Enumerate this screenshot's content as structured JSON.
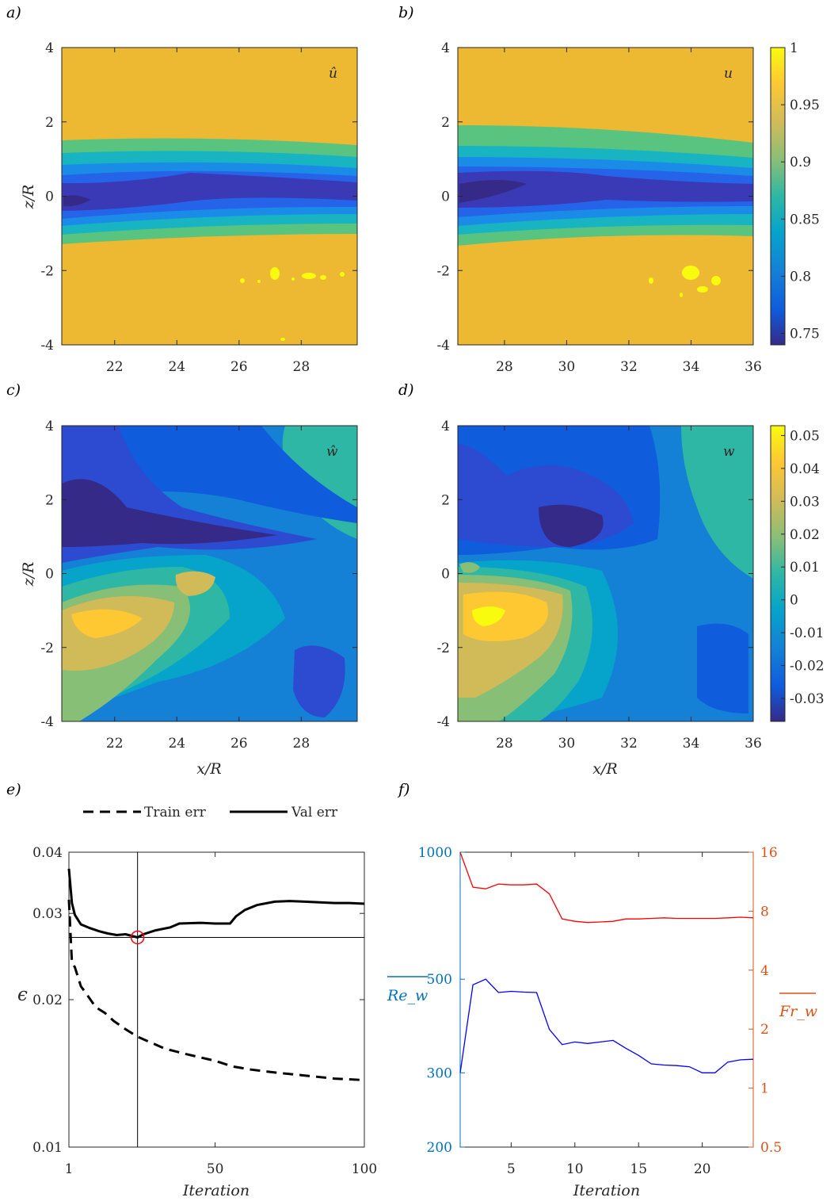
{
  "panel_labels": [
    "a)",
    "b)",
    "c)",
    "d)",
    "e)",
    "f)"
  ],
  "colormap": [
    "#352a87",
    "#0f5cdd",
    "#1481d6",
    "#06a4ca",
    "#2eb7a4",
    "#87bf77",
    "#d1bb59",
    "#fec832",
    "#f9fb0e"
  ],
  "chart_data": [
    {
      "panel": "a",
      "type": "heatmap",
      "field_label": "û",
      "ylabel": "z/R",
      "xlabel": "",
      "x_range": [
        20.3,
        29.8
      ],
      "y_range": [
        -4,
        4
      ],
      "xticks": [
        "22",
        "24",
        "26",
        "28"
      ],
      "yticks": [
        "4",
        "2",
        "0",
        "-2",
        "-4"
      ]
    },
    {
      "panel": "b",
      "type": "heatmap",
      "field_label": "u",
      "xlabel": "",
      "x_range": [
        26.5,
        36
      ],
      "y_range": [
        -4,
        4
      ],
      "xticks": [
        "28",
        "30",
        "32",
        "34",
        "36"
      ],
      "yticks": [
        "4",
        "2",
        "0",
        "-2",
        "-4"
      ],
      "colorbar": {
        "range": [
          0.74,
          1.0
        ],
        "ticks": [
          "1",
          "0.95",
          "0.9",
          "0.85",
          "0.8",
          "0.75"
        ]
      }
    },
    {
      "panel": "c",
      "type": "heatmap",
      "field_label": "ŵ",
      "ylabel": "z/R",
      "xlabel": "x/R",
      "x_range": [
        20.3,
        29.8
      ],
      "y_range": [
        -4,
        4
      ],
      "xticks": [
        "22",
        "24",
        "26",
        "28"
      ],
      "yticks": [
        "4",
        "2",
        "0",
        "-2",
        "-4"
      ]
    },
    {
      "panel": "d",
      "type": "heatmap",
      "field_label": "w",
      "xlabel": "x/R",
      "x_range": [
        26.5,
        36
      ],
      "y_range": [
        -4,
        4
      ],
      "xticks": [
        "28",
        "30",
        "32",
        "34",
        "36"
      ],
      "yticks": [
        "4",
        "2",
        "0",
        "-2",
        "-4"
      ],
      "colorbar": {
        "range": [
          -0.037,
          0.053
        ],
        "ticks": [
          "0.05",
          "0.04",
          "0.03",
          "0.02",
          "0.01",
          "0",
          "-0.01",
          "-0.02",
          "-0.03"
        ]
      }
    },
    {
      "panel": "e",
      "type": "line",
      "ylabel": "ϵ",
      "xlabel": "Iteration",
      "xlim": [
        1,
        100
      ],
      "ylim": [
        0.01,
        0.04
      ],
      "yscale": "log",
      "xticks": [
        "1",
        "50",
        "100"
      ],
      "yticks": [
        "0.04",
        "0.03",
        "0.02",
        "0.01"
      ],
      "legend": [
        "Train err",
        "Val err"
      ],
      "legend_position": "top-outside",
      "marker": {
        "x": 24,
        "y": 0.0268
      },
      "series": [
        {
          "name": "Train err",
          "style": "dashed",
          "x": [
            1,
            2,
            3,
            5,
            7,
            10,
            13,
            16,
            20,
            24,
            28,
            33,
            40,
            50,
            56,
            62,
            70,
            80,
            90,
            100
          ],
          "y": [
            0.032,
            0.0238,
            0.0233,
            0.0213,
            0.0205,
            0.0193,
            0.0188,
            0.0181,
            0.0174,
            0.0168,
            0.0164,
            0.0159,
            0.0155,
            0.015,
            0.0146,
            0.0144,
            0.0142,
            0.014,
            0.0138,
            0.0137
          ]
        },
        {
          "name": "Val err",
          "style": "solid",
          "x": [
            1,
            2,
            3,
            5,
            8,
            11,
            14,
            17,
            20,
            22,
            24,
            26,
            30,
            35,
            38,
            45,
            50,
            55,
            57,
            60,
            64,
            70,
            75,
            80,
            85,
            90,
            95,
            100
          ],
          "y": [
            0.037,
            0.0315,
            0.0298,
            0.0285,
            0.028,
            0.0276,
            0.0273,
            0.0271,
            0.0272,
            0.027,
            0.0268,
            0.0272,
            0.0277,
            0.0281,
            0.0286,
            0.0287,
            0.0286,
            0.0286,
            0.0296,
            0.0305,
            0.0312,
            0.0317,
            0.0318,
            0.0317,
            0.0316,
            0.0315,
            0.0315,
            0.0314
          ]
        }
      ]
    },
    {
      "panel": "f",
      "type": "line",
      "xlabel": "Iteration",
      "xlim": [
        1,
        24
      ],
      "xticks": [
        "5",
        "10",
        "15",
        "20"
      ],
      "left_axis": {
        "label": "Re_w",
        "color": "#0072bd",
        "scale": "log",
        "ylim": [
          200,
          1000
        ],
        "ticks": [
          "1000",
          "500",
          "300",
          "200"
        ]
      },
      "right_axis": {
        "label": "Fr_w",
        "color": "#d95319",
        "scale": "log",
        "ylim": [
          0.5,
          16
        ],
        "ticks": [
          "16",
          "8",
          "4",
          "2",
          "1",
          "0.5"
        ]
      },
      "series": [
        {
          "name": "Re_w",
          "axis": "left",
          "color": "#0000ff",
          "x": [
            1,
            2,
            3,
            4,
            5,
            6,
            7,
            8,
            9,
            10,
            11,
            12,
            13,
            14,
            15,
            16,
            17,
            18,
            19,
            20,
            21,
            22,
            23,
            24
          ],
          "y": [
            300,
            485,
            500,
            465,
            468,
            466,
            465,
            380,
            350,
            355,
            352,
            355,
            358,
            343,
            330,
            315,
            313,
            312,
            310,
            300,
            300,
            318,
            322,
            323
          ]
        },
        {
          "name": "Fr_w",
          "axis": "right",
          "color": "#ff0000",
          "x": [
            1,
            2,
            3,
            4,
            5,
            6,
            7,
            8,
            9,
            10,
            11,
            12,
            13,
            14,
            15,
            16,
            17,
            18,
            19,
            20,
            21,
            22,
            23,
            24
          ],
          "y": [
            16,
            10.6,
            10.4,
            11.0,
            10.9,
            10.9,
            11.0,
            9.8,
            7.3,
            7.1,
            7.0,
            7.05,
            7.1,
            7.3,
            7.3,
            7.35,
            7.4,
            7.35,
            7.35,
            7.35,
            7.35,
            7.4,
            7.45,
            7.4
          ]
        }
      ]
    }
  ]
}
